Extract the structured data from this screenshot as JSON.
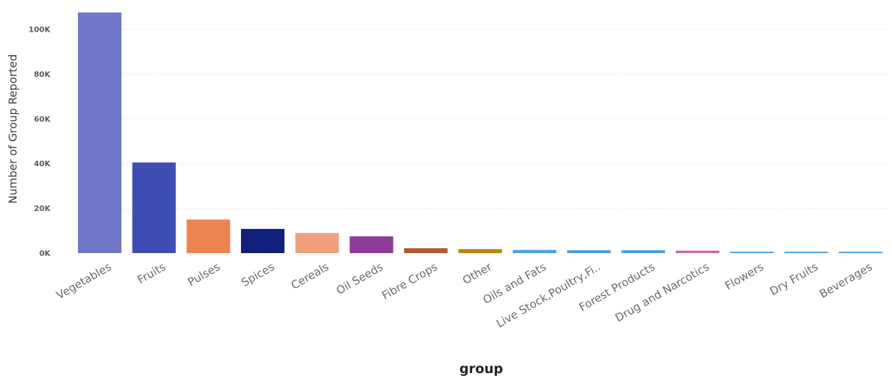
{
  "chart_data": {
    "type": "bar",
    "title": "",
    "xlabel": "group",
    "ylabel": "Number of Group Reported",
    "ylim": [
      0,
      110000
    ],
    "yticks": [
      0,
      20000,
      40000,
      60000,
      80000,
      100000
    ],
    "ytick_labels": [
      "0K",
      "20K",
      "40K",
      "60K",
      "80K",
      "100K"
    ],
    "grid": true,
    "legend": "none",
    "categories": [
      "Vegetables",
      "Fruits",
      "Pulses",
      "Spices",
      "Cereals",
      "Oil Seeds",
      "Fibre Crops",
      "Other",
      "Oils and Fats",
      "Live Stock,Poultry,Fi..",
      "Forest Products",
      "Drug and Narcotics",
      "Flowers",
      "Dry Fruits",
      "Beverages"
    ],
    "values": [
      107500,
      40500,
      15000,
      10800,
      9000,
      7500,
      2200,
      1800,
      1400,
      1300,
      1300,
      1100,
      500,
      400,
      350
    ],
    "colors": [
      "#6f75c7",
      "#3f4db3",
      "#ee8352",
      "#11207a",
      "#f0a07f",
      "#8e3a9a",
      "#b0582f",
      "#b8860b",
      "#4a9fe0",
      "#4a9fe0",
      "#4a9fe0",
      "#c368b0",
      "#4a9fe0",
      "#4a9fe0",
      "#4a9fe0"
    ]
  }
}
